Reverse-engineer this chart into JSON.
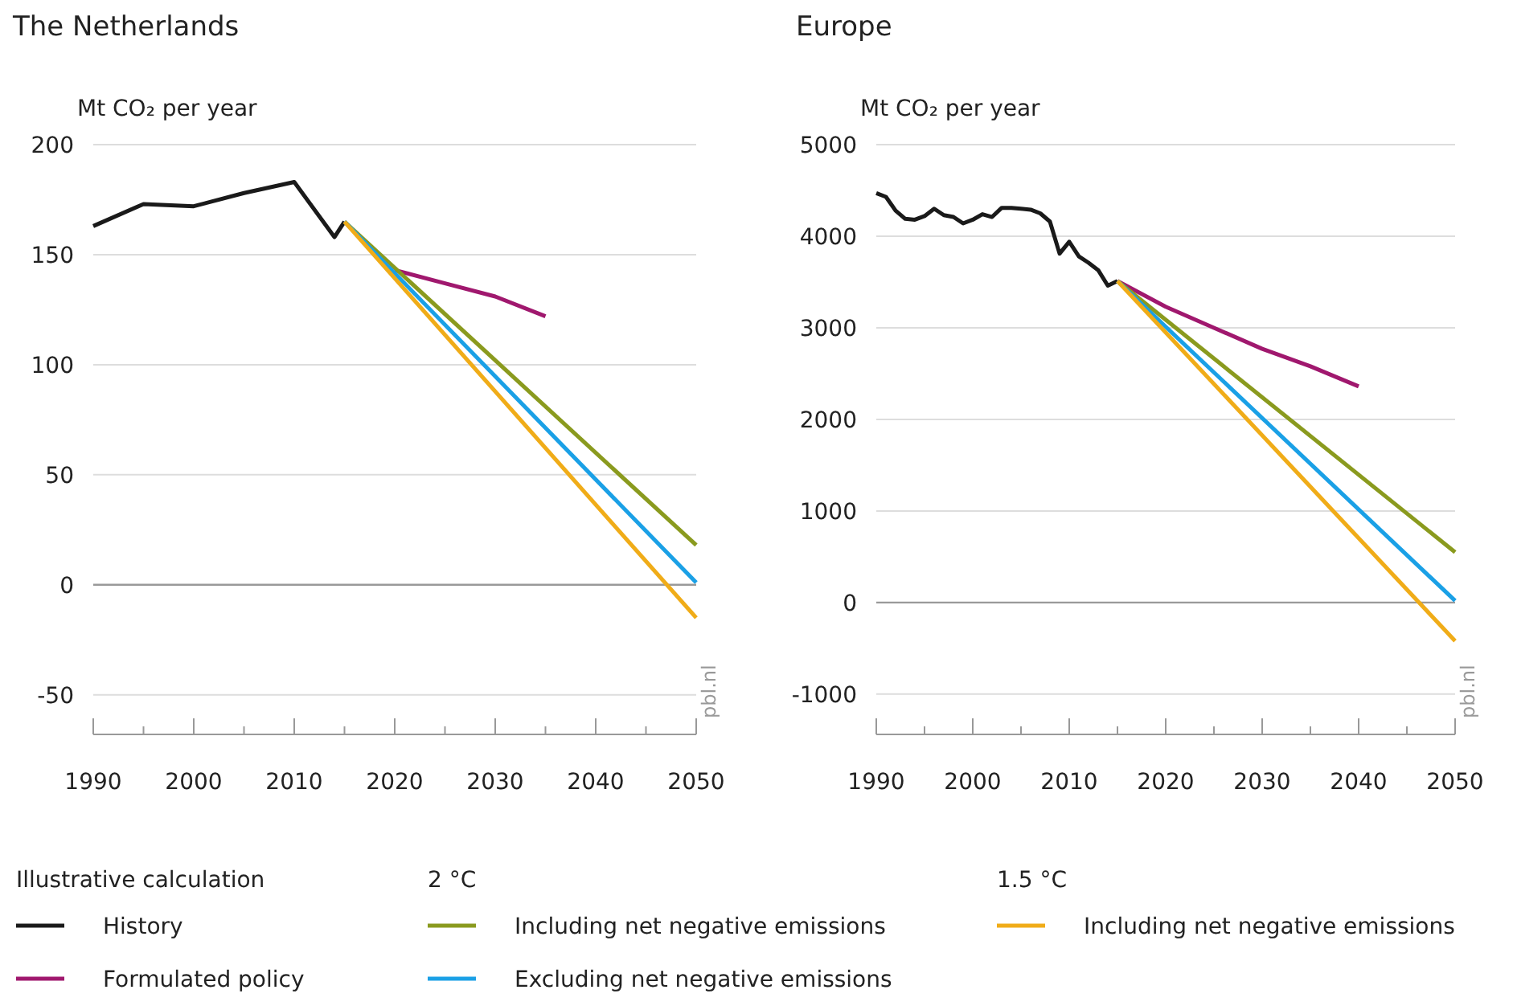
{
  "chart_data": [
    {
      "type": "line",
      "title": "The Netherlands",
      "ylabel": "Mt CO₂ per year",
      "xlim": [
        1990,
        2050
      ],
      "ylim": [
        -68,
        200
      ],
      "xticks": [
        1990,
        {
          "value": 1995,
          "label": null
        },
        2000,
        {
          "value": 2005,
          "label": null
        },
        2010,
        {
          "value": 2015,
          "label": null
        },
        2020,
        {
          "value": 2025,
          "label": null
        },
        2030,
        {
          "value": 2035,
          "label": null
        },
        2040,
        {
          "value": 2045,
          "label": null
        },
        2050
      ],
      "yticks": [
        -50,
        0,
        50,
        100,
        150,
        200
      ],
      "grid": "y",
      "legend": "bottom",
      "line_style": "solid",
      "marker": "none",
      "annotations": [
        "Illustrative calculation",
        "2 °C",
        "1.5 °C",
        "pbl.nl"
      ],
      "series": [
        {
          "name": "History",
          "color": "#1a1a1a",
          "x": [
            1990,
            1995,
            2000,
            2005,
            2010,
            2014,
            2015
          ],
          "values": [
            163,
            173,
            172,
            178,
            183,
            158,
            165
          ]
        },
        {
          "name": "Formulated policy",
          "color": "#a0186e",
          "x": [
            2020,
            2025,
            2030,
            2035
          ],
          "values": [
            143,
            137,
            131,
            122
          ]
        },
        {
          "name": "Including net negative emissions",
          "color": "#8a9a1e",
          "x": [
            2015,
            2050
          ],
          "values": [
            165,
            18
          ]
        },
        {
          "name": "Excluding net negative emissions",
          "color": "#1aa0e6",
          "x": [
            2015,
            2050
          ],
          "values": [
            165,
            1
          ]
        },
        {
          "name": "Including net negative emissions",
          "color": "#f0ac18",
          "x": [
            2015,
            2050
          ],
          "values": [
            165,
            -15
          ]
        }
      ]
    },
    {
      "type": "line",
      "title": "Europe",
      "ylabel": "Mt CO₂ per year",
      "xlim": [
        1990,
        2050
      ],
      "ylim": [
        -1440,
        5000
      ],
      "xticks": [
        1990,
        {
          "value": 1995,
          "label": null
        },
        2000,
        {
          "value": 2005,
          "label": null
        },
        2010,
        {
          "value": 2015,
          "label": null
        },
        2020,
        {
          "value": 2025,
          "label": null
        },
        2030,
        {
          "value": 2035,
          "label": null
        },
        2040,
        {
          "value": 2045,
          "label": null
        },
        2050
      ],
      "yticks": [
        -1000,
        0,
        1000,
        2000,
        3000,
        4000,
        5000
      ],
      "grid": "y",
      "line_style": "solid",
      "marker": "none",
      "annotations": [
        "pbl.nl"
      ],
      "series": [
        {
          "color": "#1a1a1a",
          "x": [
            1990,
            1991,
            1992,
            1993,
            1994,
            1995,
            1996,
            1997,
            1998,
            1999,
            2000,
            2001,
            2002,
            2003,
            2004,
            2005,
            2006,
            2007,
            2008,
            2009,
            2010,
            2011,
            2012,
            2013,
            2014,
            2015
          ],
          "values": [
            4470,
            4430,
            4280,
            4190,
            4180,
            4220,
            4300,
            4230,
            4210,
            4140,
            4180,
            4240,
            4210,
            4310,
            4310,
            4300,
            4290,
            4250,
            4160,
            3810,
            3940,
            3780,
            3710,
            3630,
            3460,
            3510
          ]
        },
        {
          "color": "#a0186e",
          "x": [
            2015,
            2020,
            2025,
            2030,
            2035,
            2040
          ],
          "values": [
            3510,
            3230,
            3000,
            2770,
            2580,
            2360
          ]
        },
        {
          "color": "#8a9a1e",
          "x": [
            2015,
            2050
          ],
          "values": [
            3510,
            550
          ]
        },
        {
          "color": "#1aa0e6",
          "x": [
            2015,
            2050
          ],
          "values": [
            3510,
            20
          ]
        },
        {
          "color": "#f0ac18",
          "x": [
            2015,
            2050
          ],
          "values": [
            3510,
            -420
          ]
        }
      ]
    }
  ]
}
